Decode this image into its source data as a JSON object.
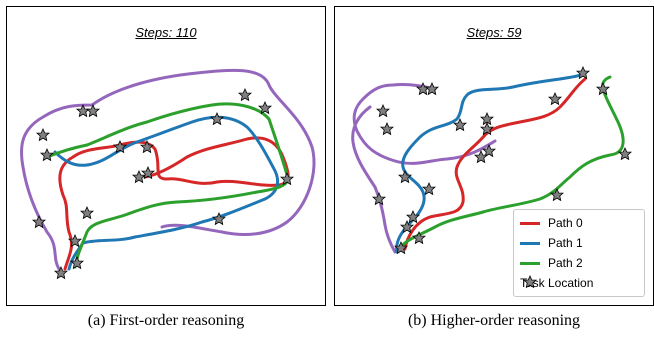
{
  "panels": [
    {
      "title": "Steps: 110",
      "caption": "(a) First-order reasoning"
    },
    {
      "title": "Steps: 59",
      "caption": "(b) Higher-order reasoning"
    }
  ],
  "legend": {
    "items": [
      {
        "label": "Path 0",
        "color": "#d62728"
      },
      {
        "label": "Path 1",
        "color": "#1f77b4"
      },
      {
        "label": "Path 2",
        "color": "#2ca02c"
      },
      {
        "label": "Task Location",
        "marker": "star-icon",
        "color": "#808080"
      }
    ]
  },
  "colors": {
    "path_0": "#d62728",
    "path_1": "#1f77b4",
    "path_2": "#2ca02c",
    "extra_path": "#9467bd",
    "task_marker": "#808080"
  }
}
